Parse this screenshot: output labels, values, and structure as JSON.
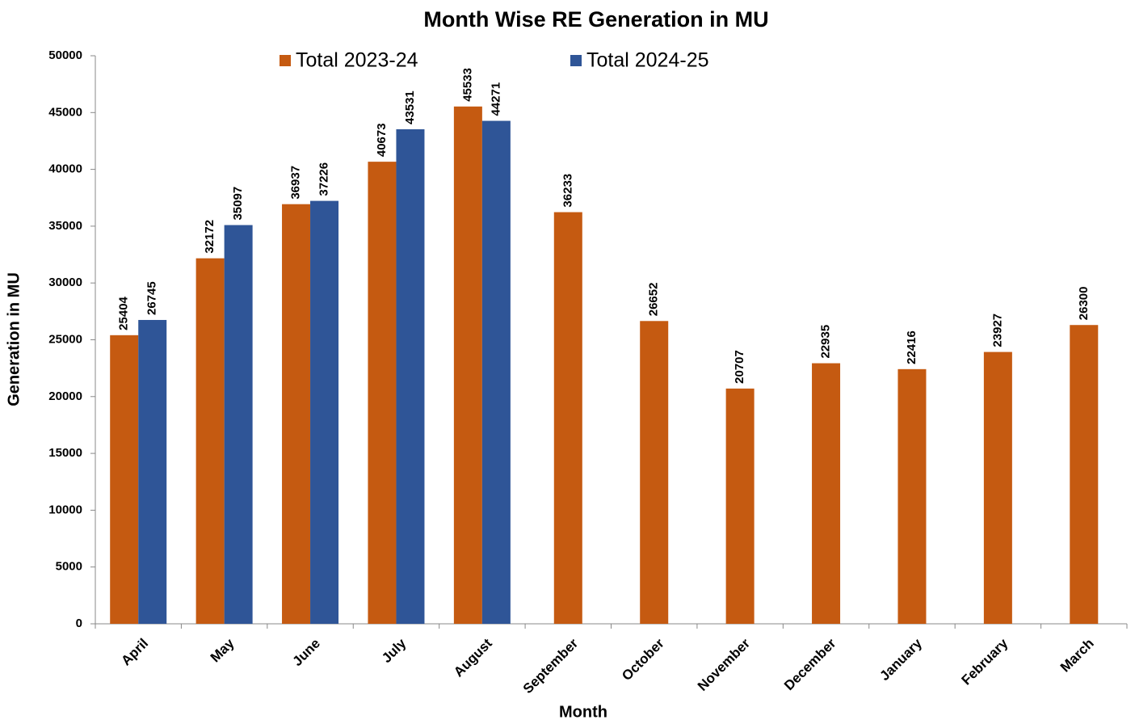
{
  "chart_data": {
    "type": "bar",
    "title": "Month Wise RE  Generation in MU",
    "x_label": "Month",
    "y_label": "Generation in MU",
    "categories": [
      "April",
      "May",
      "June",
      "July",
      "August",
      "September",
      "October",
      "November",
      "December",
      "January",
      "February",
      "March"
    ],
    "series": [
      {
        "name": "Total 2023-24",
        "color": "#c55a11",
        "values": [
          25404,
          32172,
          36937,
          40673,
          45533,
          36233,
          26652,
          20707,
          22935,
          22416,
          23927,
          26300
        ]
      },
      {
        "name": "Total 2024-25",
        "color": "#2f5597",
        "values": [
          26745,
          35097,
          37226,
          43531,
          44271,
          null,
          null,
          null,
          null,
          null,
          null,
          null
        ]
      }
    ],
    "ylim": [
      0,
      50000
    ],
    "yticks": [
      0,
      5000,
      10000,
      15000,
      20000,
      25000,
      30000,
      35000,
      40000,
      45000,
      50000
    ]
  }
}
